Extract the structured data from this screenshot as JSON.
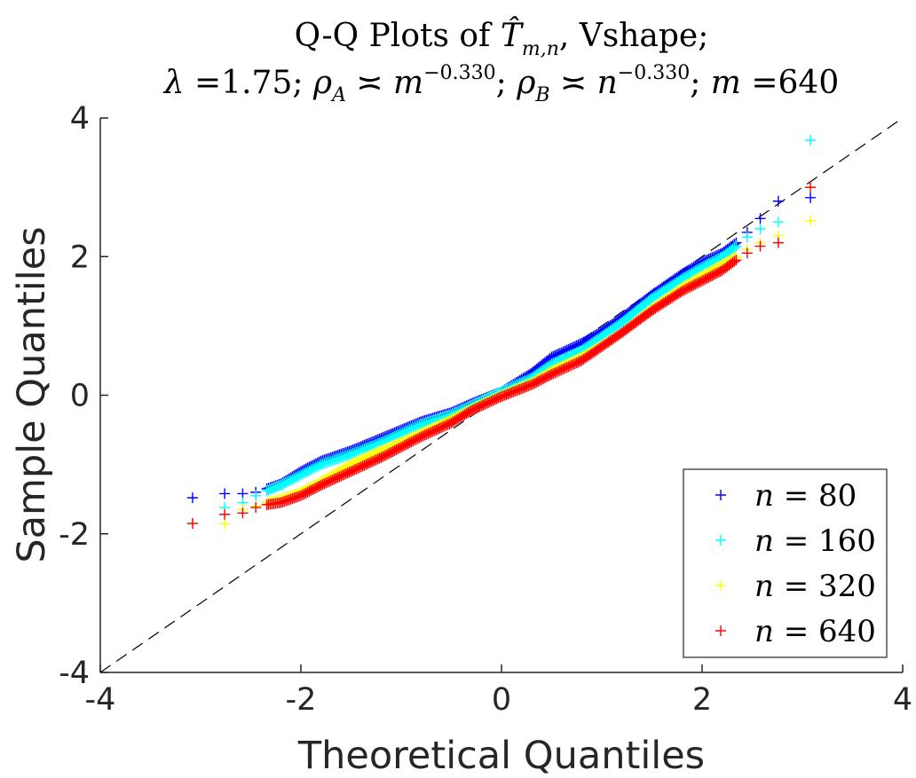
{
  "chart_data": {
    "type": "scatter",
    "title_line1": "Q-Q Plots of T̂m,n, Vshape;",
    "title_line2": "λ =1.75; ρA ≍ m−0.330; ρB ≍ n−0.330; m =640",
    "xlabel": "Theoretical Quantiles",
    "ylabel": "Sample Quantiles",
    "xlim": [
      -4,
      4
    ],
    "ylim": [
      -4,
      4
    ],
    "xticks": [
      "-4",
      "-2",
      "0",
      "2",
      "4"
    ],
    "yticks": [
      "-4",
      "-2",
      "0",
      "2",
      "4"
    ],
    "reference_line": {
      "style": "dashed",
      "color": "#000000",
      "slope": 1,
      "intercept": 0
    },
    "legend_position": "bottom-right",
    "marker": "+",
    "series": [
      {
        "name": "n = 80",
        "var": "n",
        "eq": "=",
        "num": "80",
        "color": "#0000ff",
        "x": [
          -3.08,
          -2.76,
          -2.58,
          -2.45,
          -2.34,
          -2.2,
          -2.0,
          -1.8,
          -1.5,
          -1.2,
          -1.0,
          -0.8,
          -0.5,
          -0.3,
          0.0,
          0.3,
          0.5,
          0.8,
          1.0,
          1.2,
          1.5,
          1.8,
          2.0,
          2.2,
          2.34,
          2.45,
          2.58,
          2.76,
          3.08
        ],
        "y": [
          -1.48,
          -1.42,
          -1.42,
          -1.4,
          -1.35,
          -1.28,
          -1.1,
          -0.95,
          -0.8,
          -0.62,
          -0.5,
          -0.38,
          -0.25,
          -0.12,
          0.05,
          0.32,
          0.55,
          0.75,
          0.92,
          1.12,
          1.45,
          1.75,
          1.92,
          2.05,
          2.2,
          2.35,
          2.55,
          2.8,
          2.85
        ]
      },
      {
        "name": "n = 160",
        "var": "n",
        "eq": "=",
        "num": "160",
        "color": "#00ffff",
        "x": [
          -3.08,
          -2.76,
          -2.58,
          -2.45,
          -2.34,
          -2.2,
          -2.0,
          -1.8,
          -1.5,
          -1.2,
          -1.0,
          -0.8,
          -0.5,
          -0.3,
          0.0,
          0.3,
          0.5,
          0.8,
          1.0,
          1.2,
          1.5,
          1.8,
          2.0,
          2.2,
          2.34,
          2.45,
          2.58,
          2.76,
          3.08
        ],
        "y": [
          -1.85,
          -1.62,
          -1.55,
          -1.45,
          -1.38,
          -1.3,
          -1.15,
          -1.0,
          -0.85,
          -0.68,
          -0.55,
          -0.42,
          -0.28,
          -0.15,
          0.05,
          0.25,
          0.45,
          0.65,
          0.85,
          1.05,
          1.4,
          1.68,
          1.85,
          2.0,
          2.15,
          2.28,
          2.4,
          2.5,
          3.68
        ]
      },
      {
        "name": "n = 320",
        "var": "n",
        "eq": "=",
        "num": "320",
        "color": "#ffff00",
        "x": [
          -3.08,
          -2.76,
          -2.58,
          -2.45,
          -2.34,
          -2.2,
          -2.0,
          -1.8,
          -1.5,
          -1.2,
          -1.0,
          -0.8,
          -0.5,
          -0.3,
          0.0,
          0.3,
          0.5,
          0.8,
          1.0,
          1.2,
          1.5,
          1.8,
          2.0,
          2.2,
          2.34,
          2.45,
          2.58,
          2.76,
          3.08
        ],
        "y": [
          -1.85,
          -1.85,
          -1.65,
          -1.6,
          -1.55,
          -1.5,
          -1.4,
          -1.25,
          -1.0,
          -0.8,
          -0.68,
          -0.55,
          -0.35,
          -0.2,
          0.0,
          0.18,
          0.35,
          0.55,
          0.72,
          0.9,
          1.25,
          1.55,
          1.72,
          1.88,
          2.0,
          2.1,
          2.2,
          2.3,
          2.52
        ]
      },
      {
        "name": "n = 640",
        "var": "n",
        "eq": "=",
        "num": "640",
        "color": "#ff0000",
        "x": [
          -3.08,
          -2.76,
          -2.58,
          -2.45,
          -2.34,
          -2.2,
          -2.0,
          -1.8,
          -1.5,
          -1.2,
          -1.0,
          -0.8,
          -0.5,
          -0.3,
          0.0,
          0.3,
          0.5,
          0.8,
          1.0,
          1.2,
          1.5,
          1.8,
          2.0,
          2.2,
          2.34,
          2.45,
          2.58,
          2.76,
          3.08
        ],
        "y": [
          -1.85,
          -1.72,
          -1.7,
          -1.62,
          -1.58,
          -1.55,
          -1.45,
          -1.3,
          -1.1,
          -0.9,
          -0.75,
          -0.6,
          -0.4,
          -0.22,
          -0.02,
          0.15,
          0.3,
          0.5,
          0.7,
          0.9,
          1.22,
          1.5,
          1.65,
          1.8,
          1.95,
          2.05,
          2.15,
          2.2,
          3.0
        ]
      }
    ]
  }
}
